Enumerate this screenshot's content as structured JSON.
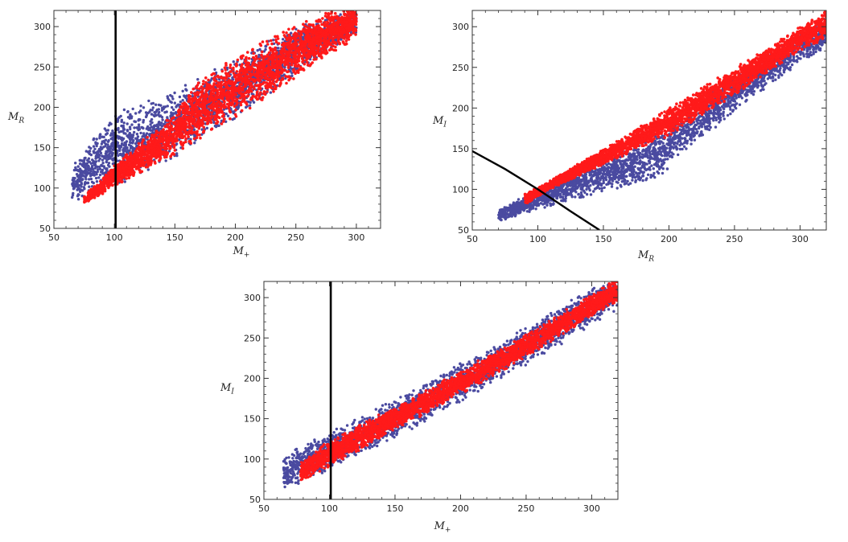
{
  "colors": {
    "blue": "#4a4aa0",
    "red": "#ff1a1a",
    "cut": "#000000"
  },
  "chart_data": [
    {
      "type": "scatter",
      "xlabel_main": "M",
      "xlabel_sub": "+",
      "ylabel_main": "M",
      "ylabel_sub": "R",
      "xlim": [
        50,
        320
      ],
      "ylim": [
        50,
        320
      ],
      "xticks": [
        "50",
        "100",
        "150",
        "200",
        "250",
        "300"
      ],
      "yticks": [
        "50",
        "100",
        "150",
        "200",
        "250",
        "300"
      ],
      "series": [
        {
          "color": "blue",
          "band": [
            [
              65,
              80,
              130
            ],
            [
              100,
              100,
              195
            ],
            [
              150,
              135,
              222
            ],
            [
              200,
              185,
              262
            ],
            [
              250,
              240,
              300
            ],
            [
              300,
              290,
              325
            ]
          ]
        },
        {
          "color": "red",
          "band": [
            [
              75,
              80,
              90
            ],
            [
              100,
              100,
              130
            ],
            [
              150,
              140,
              195
            ],
            [
              165,
              155,
              230
            ],
            [
              200,
              185,
              265
            ],
            [
              250,
              235,
              305
            ],
            [
              300,
              285,
              330
            ]
          ]
        }
      ],
      "cut": {
        "kind": "vertical",
        "x": 101
      }
    },
    {
      "type": "scatter",
      "xlabel_main": "M",
      "xlabel_sub": "R",
      "ylabel_main": "M",
      "ylabel_sub": "I",
      "xlim": [
        50,
        320
      ],
      "ylim": [
        50,
        320
      ],
      "xticks": [
        "50",
        "100",
        "150",
        "200",
        "250",
        "300"
      ],
      "yticks": [
        "50",
        "100",
        "150",
        "200",
        "250",
        "300"
      ],
      "series": [
        {
          "color": "blue",
          "band": [
            [
              70,
              60,
              75
            ],
            [
              100,
              75,
              100
            ],
            [
              150,
              95,
              140
            ],
            [
              190,
              110,
              172
            ],
            [
              200,
              125,
              185
            ],
            [
              250,
              195,
              240
            ],
            [
              300,
              255,
              295
            ],
            [
              320,
              270,
              310
            ]
          ]
        },
        {
          "color": "red",
          "band": [
            [
              90,
              80,
              95
            ],
            [
              110,
              100,
              112
            ],
            [
              150,
              130,
              150
            ],
            [
              200,
              165,
              200
            ],
            [
              250,
              215,
              250
            ],
            [
              300,
              270,
              300
            ],
            [
              320,
              285,
              320
            ]
          ]
        }
      ],
      "cut": {
        "kind": "curve",
        "points": [
          [
            50,
            147
          ],
          [
            75,
            125
          ],
          [
            100,
            100
          ],
          [
            125,
            73
          ],
          [
            147,
            50
          ]
        ]
      }
    },
    {
      "type": "scatter",
      "xlabel_main": "M",
      "xlabel_sub": "+",
      "ylabel_main": "M",
      "ylabel_sub": "I",
      "xlim": [
        50,
        320
      ],
      "ylim": [
        50,
        320
      ],
      "xticks": [
        "50",
        "100",
        "150",
        "200",
        "250",
        "300"
      ],
      "yticks": [
        "50",
        "100",
        "150",
        "200",
        "250",
        "300"
      ],
      "series": [
        {
          "color": "blue",
          "band": [
            [
              65,
              60,
              105
            ],
            [
              100,
              85,
              135
            ],
            [
              150,
              125,
              175
            ],
            [
              200,
              170,
              220
            ],
            [
              250,
              215,
              265
            ],
            [
              300,
              265,
              315
            ],
            [
              320,
              285,
              330
            ]
          ]
        },
        {
          "color": "red",
          "band": [
            [
              78,
              72,
              95
            ],
            [
              100,
              90,
              125
            ],
            [
              150,
              135,
              165
            ],
            [
              200,
              180,
              210
            ],
            [
              250,
              225,
              255
            ],
            [
              300,
              275,
              305
            ],
            [
              320,
              295,
              325
            ]
          ]
        }
      ],
      "cut": {
        "kind": "vertical",
        "x": 101
      }
    }
  ]
}
